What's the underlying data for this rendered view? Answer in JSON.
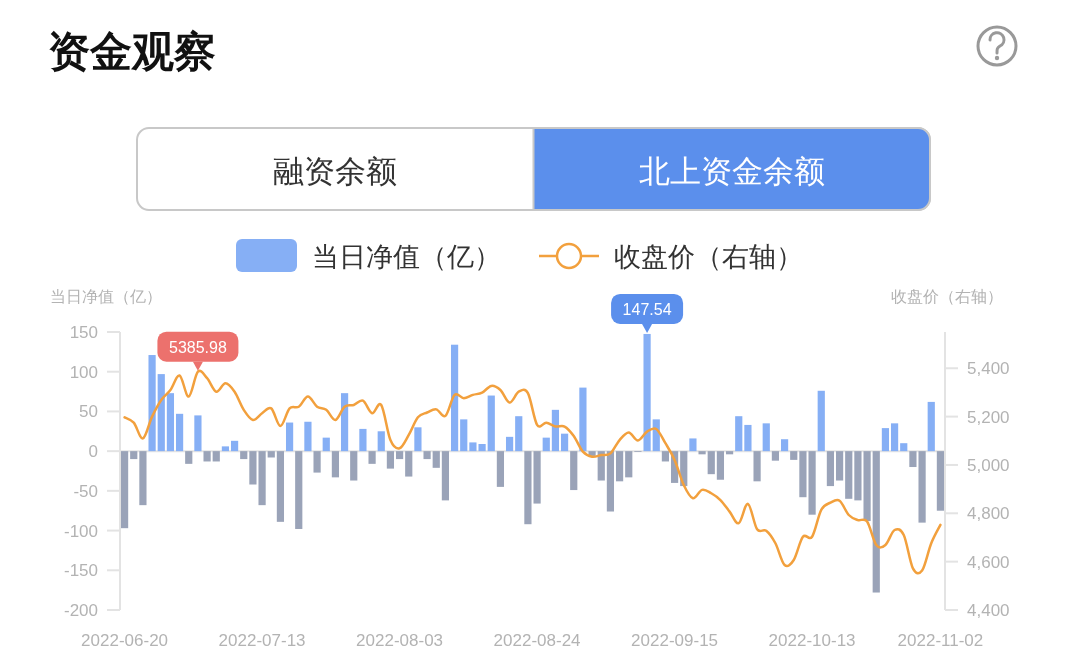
{
  "chart_data": {
    "type": "bar",
    "title": "资金观察",
    "annotations": [
      "融资余额",
      "北上资金余额"
    ],
    "ylabel": "当日净值（亿）",
    "y2label": "收盘价（右轴）",
    "legend": "top",
    "categories": [
      "2022-06-20",
      null,
      null,
      null,
      null,
      null,
      null,
      null,
      null,
      null,
      null,
      null,
      null,
      null,
      null,
      "2022-07-13",
      null,
      null,
      null,
      null,
      null,
      null,
      null,
      null,
      null,
      null,
      null,
      null,
      null,
      null,
      "2022-08-03",
      null,
      null,
      null,
      null,
      null,
      null,
      null,
      null,
      null,
      null,
      null,
      null,
      null,
      null,
      "2022-08-24",
      null,
      null,
      null,
      null,
      null,
      null,
      null,
      null,
      null,
      null,
      null,
      null,
      null,
      null,
      "2022-09-15",
      null,
      null,
      null,
      null,
      null,
      null,
      null,
      null,
      null,
      null,
      null,
      null,
      null,
      null,
      "2022-10-13",
      null,
      null,
      null,
      null,
      null,
      null,
      null,
      null,
      null,
      null,
      null,
      null,
      null,
      "2022-11-02"
    ],
    "ylim": [
      -200,
      150
    ],
    "yticks": [
      150,
      100,
      50,
      0,
      -50,
      -100,
      -150,
      -200
    ],
    "y2lim": [
      4400,
      5550
    ],
    "y2ticks": [
      {
        "value": 4400,
        "label": "4,400"
      },
      {
        "value": 4600,
        "label": "4,600"
      },
      {
        "value": 4800,
        "label": "4,800"
      },
      {
        "value": 5000,
        "label": "5,000"
      },
      {
        "value": 5200,
        "label": "5,200"
      },
      {
        "value": 5400,
        "label": "5,400"
      }
    ],
    "series": [
      {
        "name": "当日净值（亿）",
        "color": "#86aff5",
        "values": [
          -97,
          -10,
          -68,
          121,
          97,
          73,
          47,
          -16,
          45,
          -13,
          -13,
          6,
          13,
          -10,
          -42,
          -68,
          -8,
          -89,
          36,
          -98,
          37,
          -27,
          17,
          -33,
          73,
          -37,
          28,
          -16,
          25,
          -22,
          -10,
          -32,
          30,
          -10,
          -21,
          -62,
          134,
          40,
          11,
          9,
          70,
          -45,
          18,
          44,
          -92,
          -66,
          17,
          52,
          22,
          -49,
          80,
          -6,
          -37,
          -76,
          -38,
          -33,
          -1,
          147.54,
          40,
          -13,
          -40,
          -44,
          16,
          -4,
          -29,
          -36,
          -4,
          44,
          33,
          -38,
          35,
          -12,
          15,
          -11,
          -58,
          -80,
          76,
          -44,
          -37,
          -60,
          -62,
          -88,
          -178,
          29,
          35,
          10,
          -20,
          -90,
          62,
          -75
        ],
        "colors": [
          "#9aa3b8",
          "#9aa3b8",
          "#9aa3b8",
          "#86aff5",
          "#86aff5",
          "#86aff5",
          "#86aff5",
          "#9aa3b8",
          "#86aff5",
          "#9aa3b8",
          "#9aa3b8",
          "#86aff5",
          "#86aff5",
          "#9aa3b8",
          "#9aa3b8",
          "#9aa3b8",
          "#9aa3b8",
          "#9aa3b8",
          "#86aff5",
          "#9aa3b8",
          "#86aff5",
          "#9aa3b8",
          "#86aff5",
          "#9aa3b8",
          "#86aff5",
          "#9aa3b8",
          "#86aff5",
          "#9aa3b8",
          "#86aff5",
          "#9aa3b8",
          "#9aa3b8",
          "#9aa3b8",
          "#86aff5",
          "#9aa3b8",
          "#9aa3b8",
          "#9aa3b8",
          "#86aff5",
          "#86aff5",
          "#86aff5",
          "#86aff5",
          "#86aff5",
          "#9aa3b8",
          "#86aff5",
          "#86aff5",
          "#9aa3b8",
          "#9aa3b8",
          "#86aff5",
          "#86aff5",
          "#86aff5",
          "#9aa3b8",
          "#86aff5",
          "#9aa3b8",
          "#9aa3b8",
          "#9aa3b8",
          "#9aa3b8",
          "#9aa3b8",
          "#9aa3b8",
          "#86aff5",
          "#86aff5",
          "#9aa3b8",
          "#9aa3b8",
          "#9aa3b8",
          "#86aff5",
          "#9aa3b8",
          "#9aa3b8",
          "#9aa3b8",
          "#9aa3b8",
          "#86aff5",
          "#86aff5",
          "#9aa3b8",
          "#86aff5",
          "#9aa3b8",
          "#86aff5",
          "#9aa3b8",
          "#9aa3b8",
          "#9aa3b8",
          "#86aff5",
          "#9aa3b8",
          "#9aa3b8",
          "#9aa3b8",
          "#9aa3b8",
          "#9aa3b8",
          "#9aa3b8",
          "#86aff5",
          "#86aff5",
          "#86aff5",
          "#9aa3b8",
          "#9aa3b8",
          "#86aff5",
          "#9aa3b8"
        ],
        "value_labels": [
          null,
          null,
          null,
          null,
          null,
          null,
          null,
          null,
          null,
          null,
          null,
          null,
          null,
          null,
          null,
          null,
          null,
          null,
          null,
          null,
          null,
          null,
          null,
          null,
          null,
          null,
          null,
          null,
          null,
          null,
          null,
          null,
          null,
          null,
          null,
          null,
          null,
          null,
          null,
          null,
          null,
          null,
          null,
          null,
          null,
          null,
          null,
          null,
          null,
          null,
          null,
          null,
          null,
          null,
          null,
          null,
          null,
          "147.54",
          null,
          null,
          null,
          null,
          null,
          null,
          null,
          null,
          null,
          null,
          null,
          null,
          null,
          null,
          null,
          null,
          null,
          null,
          null,
          null,
          null,
          null,
          null,
          null,
          null,
          null,
          null,
          null,
          null,
          null,
          null,
          null
        ]
      },
      {
        "name": "收盘价（右轴）",
        "type": "line",
        "axis": "y2",
        "color": "#f2a03d",
        "values": [
          5197,
          5175,
          5110,
          5200,
          5269,
          5310,
          5370,
          5283,
          5385.98,
          5359,
          5303,
          5338,
          5303,
          5228,
          5186,
          5214,
          5234,
          5161,
          5234,
          5241,
          5283,
          5241,
          5228,
          5186,
          5241,
          5248,
          5266,
          5214,
          5248,
          5103,
          5069,
          5124,
          5197,
          5217,
          5230,
          5203,
          5290,
          5276,
          5290,
          5299,
          5327,
          5310,
          5258,
          5303,
          5297,
          5166,
          5175,
          5159,
          5159,
          5120,
          5055,
          5034,
          5041,
          5048,
          5103,
          5134,
          5101,
          5138,
          5149,
          5090,
          5021,
          4917,
          4862,
          4897,
          4883,
          4855,
          4807,
          4759,
          4839,
          4734,
          4728,
          4676,
          4586,
          4607,
          4703,
          4703,
          4814,
          4844,
          4852,
          4793,
          4772,
          4766,
          4669,
          4669,
          4731,
          4710,
          4572,
          4563,
          4676,
          4752
        ],
        "value_labels": [
          null,
          null,
          null,
          null,
          null,
          null,
          null,
          null,
          "5385.98",
          null,
          null,
          null,
          null,
          null,
          null,
          null,
          null,
          null,
          null,
          null,
          null,
          null,
          null,
          null,
          null,
          null,
          null,
          null,
          null,
          null,
          null,
          null,
          null,
          null,
          null,
          null,
          null,
          null,
          null,
          null,
          null,
          null,
          null,
          null,
          null,
          null,
          null,
          null,
          null,
          null,
          null,
          null,
          null,
          null,
          null,
          null,
          null,
          null,
          null,
          null,
          null,
          null,
          null,
          null,
          null,
          null,
          null,
          null,
          null,
          null,
          null,
          null,
          null,
          null,
          null,
          null,
          null,
          null,
          null,
          null,
          null,
          null,
          null,
          null,
          null,
          null,
          null,
          null,
          null,
          null
        ]
      }
    ]
  }
}
